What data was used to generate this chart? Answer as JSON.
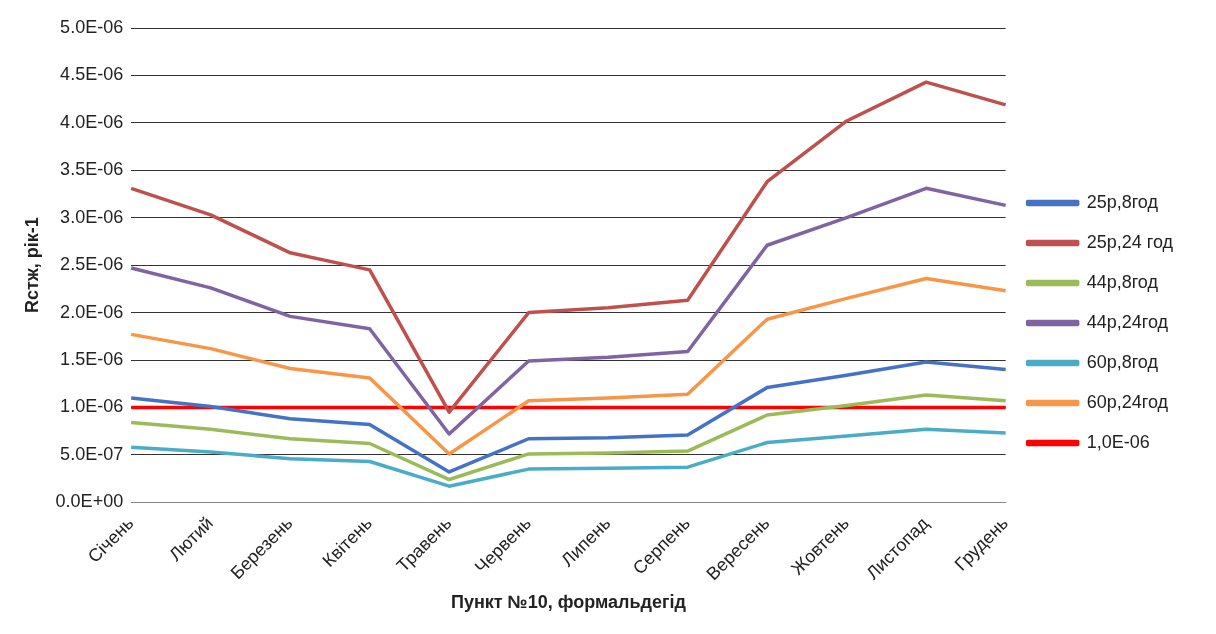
{
  "chart_data": {
    "type": "line",
    "xlabel": "Пункт №10, формальдегід",
    "ylabel": "Rстж, рік-1",
    "categories": [
      "Січень",
      "Лютий",
      "Березень",
      "Квітень",
      "Травень",
      "Червень",
      "Липень",
      "Серпень",
      "Вересень",
      "Жовтень",
      "Листопад",
      "Грудень"
    ],
    "series": [
      {
        "name": "25р,8год",
        "color": "#4472c4",
        "values": [
          1.1e-06,
          1.01e-06,
          8.8e-07,
          8.2e-07,
          3.2e-07,
          6.7e-07,
          6.8e-07,
          7.1e-07,
          1.21e-06,
          1.34e-06,
          1.48e-06,
          1.4e-06
        ]
      },
      {
        "name": "25р,24 год",
        "color": "#c0504d",
        "values": [
          3.31e-06,
          3.03e-06,
          2.63e-06,
          2.45e-06,
          9.5e-07,
          2e-06,
          2.05e-06,
          2.13e-06,
          3.38e-06,
          4.02e-06,
          4.43e-06,
          4.19e-06
        ]
      },
      {
        "name": "44р,8год",
        "color": "#9bbb59",
        "values": [
          8.4e-07,
          7.7e-07,
          6.7e-07,
          6.2e-07,
          2.4e-07,
          5.1e-07,
          5.2e-07,
          5.4e-07,
          9.2e-07,
          1.02e-06,
          1.13e-06,
          1.07e-06
        ]
      },
      {
        "name": "44р,24год",
        "color": "#8064a2",
        "values": [
          2.47e-06,
          2.26e-06,
          1.96e-06,
          1.83e-06,
          7.2e-07,
          1.49e-06,
          1.53e-06,
          1.59e-06,
          2.71e-06,
          3e-06,
          3.31e-06,
          3.13e-06
        ]
      },
      {
        "name": "60р,8год",
        "color": "#4bacc6",
        "values": [
          5.8e-07,
          5.3e-07,
          4.6e-07,
          4.3e-07,
          1.7e-07,
          3.5e-07,
          3.6e-07,
          3.7e-07,
          6.3e-07,
          7e-07,
          7.7e-07,
          7.3e-07
        ]
      },
      {
        "name": "60р,24год",
        "color": "#f79646",
        "values": [
          1.77e-06,
          1.62e-06,
          1.41e-06,
          1.31e-06,
          5.1e-07,
          1.07e-06,
          1.1e-06,
          1.14e-06,
          1.93e-06,
          2.15e-06,
          2.36e-06,
          2.23e-06
        ]
      },
      {
        "name": "1,0E-06",
        "color": "#ff0000",
        "values": [
          1e-06,
          1e-06,
          1e-06,
          1e-06,
          1e-06,
          1e-06,
          1e-06,
          1e-06,
          1e-06,
          1e-06,
          1e-06,
          1e-06
        ]
      }
    ],
    "ylim": [
      0,
      5e-06
    ],
    "yticks": [
      {
        "value": 0,
        "label": "0.0E+00"
      },
      {
        "value": 5e-07,
        "label": "5.0E-07"
      },
      {
        "value": 1e-06,
        "label": "1.0E-06"
      },
      {
        "value": 1.5e-06,
        "label": "1.5E-06"
      },
      {
        "value": 2e-06,
        "label": "2.0E-06"
      },
      {
        "value": 2.5e-06,
        "label": "2.5E-06"
      },
      {
        "value": 3e-06,
        "label": "3.0E-06"
      },
      {
        "value": 3.5e-06,
        "label": "3.5E-06"
      },
      {
        "value": 4e-06,
        "label": "4.0E-06"
      },
      {
        "value": 4.5e-06,
        "label": "4.5E-06"
      },
      {
        "value": 5e-06,
        "label": "5.0E-06"
      }
    ],
    "grid": "y",
    "legend": "right",
    "marker": "none",
    "line_style": "solid"
  }
}
